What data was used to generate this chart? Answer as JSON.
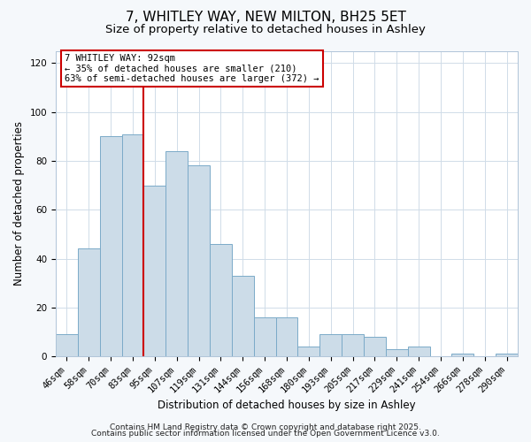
{
  "title": "7, WHITLEY WAY, NEW MILTON, BH25 5ET",
  "subtitle": "Size of property relative to detached houses in Ashley",
  "xlabel": "Distribution of detached houses by size in Ashley",
  "ylabel": "Number of detached properties",
  "bar_labels": [
    "46sqm",
    "58sqm",
    "70sqm",
    "83sqm",
    "95sqm",
    "107sqm",
    "119sqm",
    "131sqm",
    "144sqm",
    "156sqm",
    "168sqm",
    "180sqm",
    "193sqm",
    "205sqm",
    "217sqm",
    "229sqm",
    "241sqm",
    "254sqm",
    "266sqm",
    "278sqm",
    "290sqm"
  ],
  "bar_values": [
    9,
    44,
    90,
    91,
    70,
    84,
    78,
    46,
    33,
    16,
    16,
    4,
    9,
    9,
    8,
    3,
    4,
    0,
    1,
    0,
    1
  ],
  "bar_color": "#ccdce8",
  "bar_edge_color": "#7baac8",
  "vline_x_index": 4,
  "vline_color": "#cc0000",
  "annotation_title": "7 WHITLEY WAY: 92sqm",
  "annotation_line1": "← 35% of detached houses are smaller (210)",
  "annotation_line2": "63% of semi-detached houses are larger (372) →",
  "annotation_box_facecolor": "#ffffff",
  "annotation_box_edgecolor": "#cc0000",
  "ylim": [
    0,
    125
  ],
  "yticks": [
    0,
    20,
    40,
    60,
    80,
    100,
    120
  ],
  "footer1": "Contains HM Land Registry data © Crown copyright and database right 2025.",
  "footer2": "Contains public sector information licensed under the Open Government Licence v3.0.",
  "bg_color": "#f5f8fb",
  "plot_bg_color": "#ffffff",
  "grid_color": "#d0dce8",
  "title_fontsize": 11,
  "subtitle_fontsize": 9.5,
  "axis_label_fontsize": 8.5,
  "tick_fontsize": 7.5,
  "annotation_fontsize": 7.5,
  "footer_fontsize": 6.5
}
